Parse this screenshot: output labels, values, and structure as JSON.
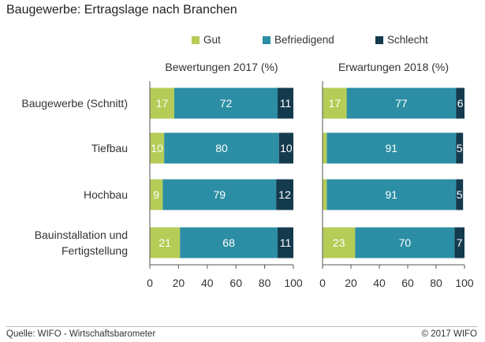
{
  "title": "Baugewerbe: Ertragslage nach Branchen",
  "source": "Quelle: WIFO - Wirtschaftsbarometer",
  "copyright": "© 2017 WIFO",
  "colors": {
    "Gut": "#b5cc56",
    "Befriedigend": "#2b8ea4",
    "Schlecht": "#143a4e"
  },
  "chart_data": {
    "type": "bar",
    "orientation": "horizontal",
    "stacked": true,
    "legend_position": "top",
    "categories": [
      "Baugewerbe (Schnitt)",
      "Tiefbau",
      "Hochbau",
      "Bauinstallation und\nFertigstellung"
    ],
    "series_names": [
      "Gut",
      "Befriedigend",
      "Schlecht"
    ],
    "panels": [
      {
        "title": "Bewertungen 2017 (%)",
        "xlim": [
          0,
          100
        ],
        "ticks": [
          0,
          20,
          40,
          60,
          80,
          100
        ],
        "series": [
          {
            "name": "Gut",
            "values": [
              17,
              10,
              9,
              21
            ],
            "labels": [
              "17",
              "10",
              "9",
              "21"
            ]
          },
          {
            "name": "Befriedigend",
            "values": [
              72,
              80,
              79,
              68
            ],
            "labels": [
              "72",
              "80",
              "79",
              "68"
            ]
          },
          {
            "name": "Schlecht",
            "values": [
              11,
              10,
              12,
              11
            ],
            "labels": [
              "11",
              "10",
              "12",
              "11"
            ]
          }
        ]
      },
      {
        "title": "Erwartungen 2018 (%)",
        "xlim": [
          0,
          100
        ],
        "ticks": [
          0,
          20,
          40,
          60,
          80,
          100
        ],
        "series": [
          {
            "name": "Gut",
            "values": [
              17,
              3,
              3,
              23
            ],
            "labels": [
              "17",
              "",
              "",
              "23"
            ]
          },
          {
            "name": "Befriedigend",
            "values": [
              77,
              91,
              91,
              70
            ],
            "labels": [
              "77",
              "91",
              "91",
              "70"
            ]
          },
          {
            "name": "Schlecht",
            "values": [
              6,
              5,
              5,
              7
            ],
            "labels": [
              "6",
              "5",
              "5",
              "7"
            ]
          }
        ]
      }
    ]
  }
}
